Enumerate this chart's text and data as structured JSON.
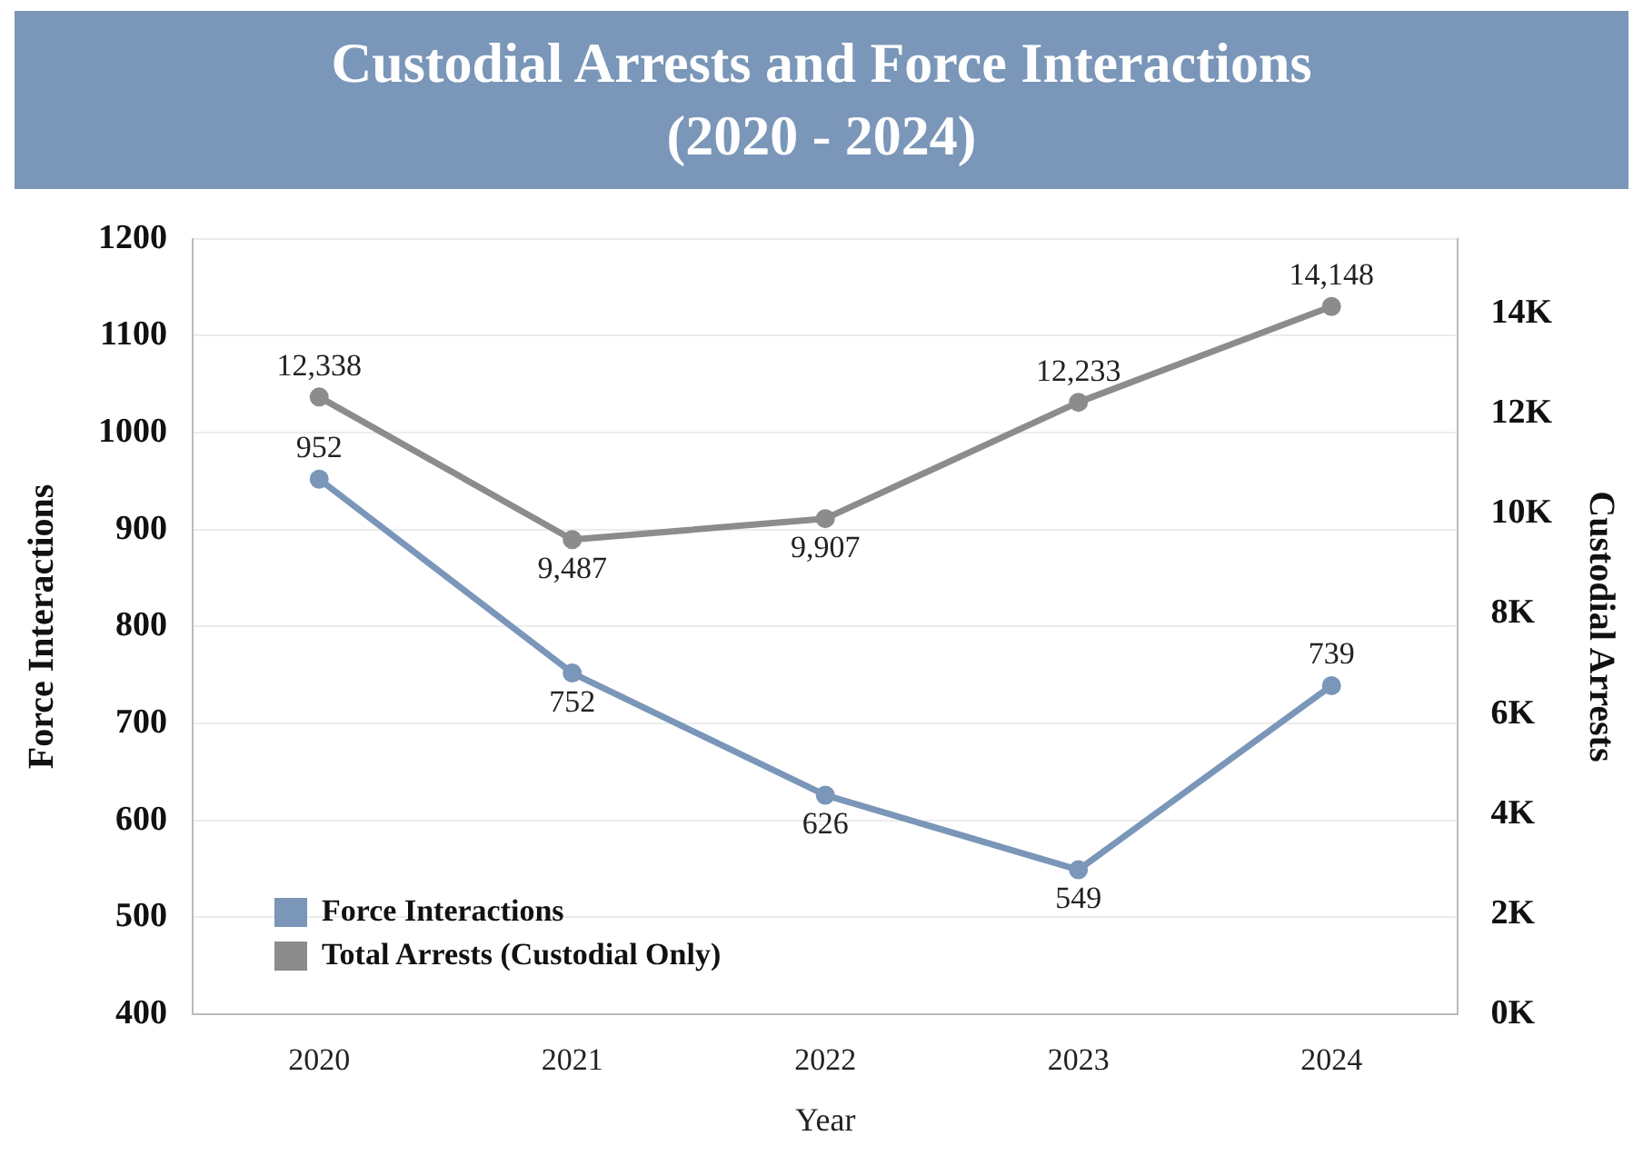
{
  "chart_data": {
    "type": "line",
    "title": "Custodial Arrests and Force Interactions\n(2020 - 2024)",
    "xlabel": "Year",
    "ylabel": "Force Interactions",
    "y2label": "Custodial Arrests",
    "categories": [
      "2020",
      "2021",
      "2022",
      "2023",
      "2024"
    ],
    "series": [
      {
        "name": "Force Interactions",
        "color": "#7a96b8",
        "values": [
          952,
          752,
          626,
          549,
          739
        ]
      },
      {
        "name": "Total Arrests (Custodial Only)",
        "color": "#8c8c8c",
        "values": [
          12338,
          9487,
          9907,
          12233,
          14148
        ],
        "axis": "y2",
        "value_labels": [
          "12,338",
          "9,487",
          "9,907",
          "12,233",
          "14,148"
        ]
      }
    ],
    "ylim": [
      400,
      1200
    ],
    "yticks": [
      400,
      500,
      600,
      700,
      800,
      900,
      1000,
      1100,
      1200
    ],
    "y2lim": [
      0,
      15500
    ],
    "y2ticks": [
      {
        "value": 0,
        "label": "0K"
      },
      {
        "value": 2000,
        "label": "2K"
      },
      {
        "value": 4000,
        "label": "4K"
      },
      {
        "value": 6000,
        "label": "6K"
      },
      {
        "value": 8000,
        "label": "8K"
      },
      {
        "value": 10000,
        "label": "10K"
      },
      {
        "value": 12000,
        "label": "12K"
      },
      {
        "value": 14000,
        "label": "14K"
      }
    ],
    "data_labels": true,
    "grid": "y",
    "legend": "bottom left",
    "marker": "circle",
    "line_style": "solid"
  }
}
